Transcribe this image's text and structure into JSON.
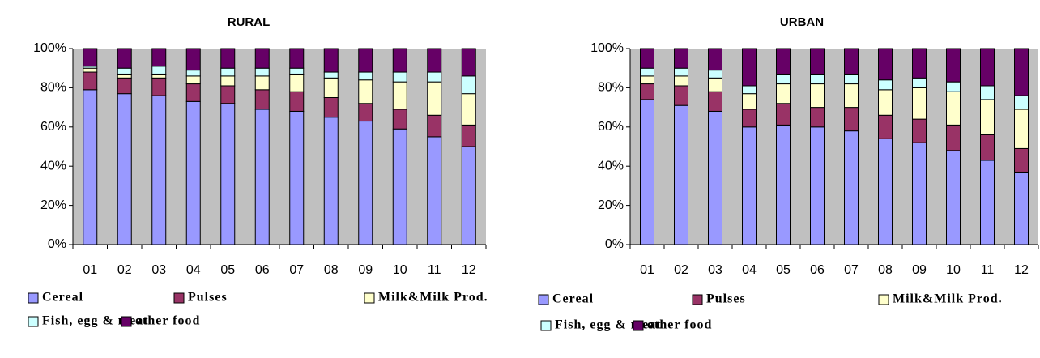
{
  "chart_data": [
    {
      "type": "stacked-bar",
      "title": "RURAL",
      "categories": [
        "01",
        "02",
        "03",
        "04",
        "05",
        "06",
        "07",
        "08",
        "09",
        "10",
        "11",
        "12"
      ],
      "ylim": [
        0,
        100
      ],
      "yticks": [
        {
          "value": 0,
          "label": "0%"
        },
        {
          "value": 20,
          "label": "20%"
        },
        {
          "value": 40,
          "label": "40%"
        },
        {
          "value": 60,
          "label": "60%"
        },
        {
          "value": 80,
          "label": "80%"
        },
        {
          "value": 100,
          "label": "100%"
        }
      ],
      "series": [
        {
          "name": "Cereal",
          "color": "#9999ff",
          "values": [
            79,
            77,
            76,
            73,
            72,
            69,
            68,
            65,
            63,
            59,
            55,
            50
          ]
        },
        {
          "name": "Pulses",
          "color": "#993366",
          "values": [
            9,
            8,
            9,
            9,
            9,
            10,
            10,
            10,
            9,
            10,
            11,
            11
          ]
        },
        {
          "name": "Milk&Milk Prod.",
          "color": "#ffffcc",
          "values": [
            2,
            2,
            2,
            4,
            5,
            7,
            9,
            10,
            12,
            14,
            17,
            16
          ]
        },
        {
          "name": "Fish, egg & meat",
          "color": "#ccffff",
          "values": [
            1,
            3,
            4,
            3,
            4,
            4,
            3,
            3,
            4,
            5,
            5,
            9
          ]
        },
        {
          "name": "other food",
          "color": "#660066",
          "values": [
            9,
            10,
            9,
            11,
            10,
            10,
            10,
            12,
            12,
            12,
            12,
            14
          ]
        }
      ]
    },
    {
      "type": "stacked-bar",
      "title": "URBAN",
      "categories": [
        "01",
        "02",
        "03",
        "04",
        "05",
        "06",
        "07",
        "08",
        "09",
        "10",
        "11",
        "12"
      ],
      "ylim": [
        0,
        100
      ],
      "yticks": [
        {
          "value": 0,
          "label": "0%"
        },
        {
          "value": 20,
          "label": "20%"
        },
        {
          "value": 40,
          "label": "40%"
        },
        {
          "value": 60,
          "label": "60%"
        },
        {
          "value": 80,
          "label": "80%"
        },
        {
          "value": 100,
          "label": "100%"
        }
      ],
      "series": [
        {
          "name": "Cereal",
          "color": "#9999ff",
          "values": [
            74,
            71,
            68,
            60,
            61,
            60,
            58,
            54,
            52,
            48,
            43,
            37
          ]
        },
        {
          "name": "Pulses",
          "color": "#993366",
          "values": [
            8,
            10,
            10,
            9,
            11,
            10,
            12,
            12,
            12,
            13,
            13,
            12
          ]
        },
        {
          "name": "Milk&Milk Prod.",
          "color": "#ffffcc",
          "values": [
            4,
            5,
            7,
            8,
            10,
            12,
            12,
            13,
            16,
            17,
            18,
            20
          ]
        },
        {
          "name": "Fish, egg & meat",
          "color": "#ccffff",
          "values": [
            4,
            4,
            4,
            4,
            5,
            5,
            5,
            5,
            5,
            5,
            7,
            7
          ]
        },
        {
          "name": "other food",
          "color": "#660066",
          "values": [
            10,
            10,
            11,
            19,
            13,
            13,
            13,
            16,
            15,
            17,
            19,
            24
          ]
        }
      ]
    }
  ]
}
